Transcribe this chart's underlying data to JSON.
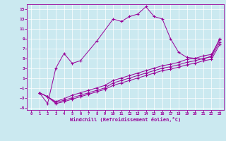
{
  "xlabel": "Windchill (Refroidissement éolien,°C)",
  "background_color": "#cbe9f0",
  "grid_color": "#ffffff",
  "line_color": "#990099",
  "xlim": [
    -0.5,
    23.5
  ],
  "ylim": [
    -5.5,
    16
  ],
  "xticks": [
    0,
    1,
    2,
    3,
    4,
    5,
    6,
    7,
    8,
    9,
    10,
    11,
    12,
    13,
    14,
    15,
    16,
    17,
    18,
    19,
    20,
    21,
    22,
    23
  ],
  "yticks": [
    -5,
    -3,
    -1,
    1,
    3,
    5,
    7,
    9,
    11,
    13,
    15
  ],
  "line1_x": [
    1,
    2,
    3,
    4,
    5,
    6,
    8,
    10,
    11,
    12,
    13,
    14,
    15,
    16,
    17,
    18,
    19,
    20,
    21,
    22,
    23
  ],
  "line1_y": [
    -2,
    -4.2,
    3,
    6,
    4,
    4.5,
    8.5,
    13,
    12.5,
    13.5,
    14,
    15.5,
    13.5,
    13,
    9,
    6.2,
    5.2,
    5,
    4.8,
    5.5,
    9
  ],
  "line2_x": [
    1,
    2,
    3,
    4,
    5,
    6,
    7,
    8,
    9,
    10,
    11,
    12,
    13,
    14,
    15,
    16,
    17,
    18,
    19,
    20,
    21,
    22,
    23
  ],
  "line2_y": [
    -2,
    -2.8,
    -3.8,
    -3.2,
    -2.5,
    -2.0,
    -1.5,
    -1.0,
    -0.5,
    0.5,
    1.0,
    1.5,
    2.0,
    2.5,
    3.0,
    3.5,
    3.8,
    4.2,
    4.8,
    5.0,
    5.5,
    5.8,
    8.8
  ],
  "line3_x": [
    1,
    2,
    3,
    4,
    5,
    6,
    7,
    8,
    9,
    10,
    11,
    12,
    13,
    14,
    15,
    16,
    17,
    18,
    19,
    20,
    21,
    22,
    23
  ],
  "line3_y": [
    -2,
    -2.8,
    -4.0,
    -3.5,
    -3.0,
    -2.5,
    -2.0,
    -1.5,
    -1.0,
    0.0,
    0.5,
    1.0,
    1.5,
    2.0,
    2.5,
    3.0,
    3.3,
    3.7,
    4.2,
    4.5,
    5.0,
    5.3,
    8.3
  ],
  "line4_x": [
    1,
    2,
    3,
    4,
    5,
    6,
    7,
    8,
    9,
    10,
    11,
    12,
    13,
    14,
    15,
    16,
    17,
    18,
    19,
    20,
    21,
    22,
    23
  ],
  "line4_y": [
    -2,
    -2.8,
    -4.2,
    -3.8,
    -3.3,
    -2.8,
    -2.3,
    -1.8,
    -1.3,
    -0.5,
    0.0,
    0.5,
    1.0,
    1.5,
    2.0,
    2.5,
    2.8,
    3.2,
    3.7,
    4.0,
    4.5,
    4.8,
    7.8
  ]
}
